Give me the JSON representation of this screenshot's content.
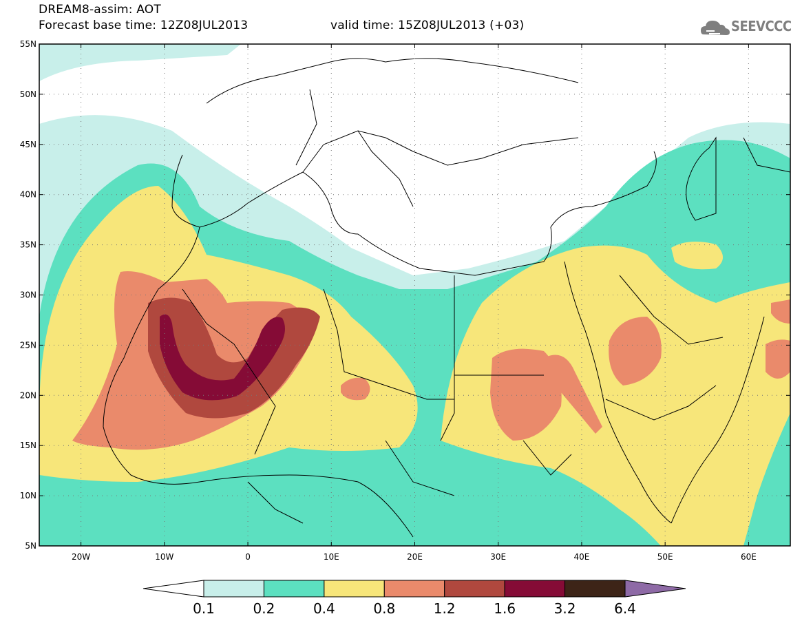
{
  "header": {
    "line1": "DREAM8-assim: AOT",
    "line2": "Forecast base time: 12Z08JUL2013",
    "line3": "valid time: 15Z08JUL2013 (+03)",
    "logo_text": "SEEVCCC"
  },
  "axes": {
    "lat_labels": [
      "55N",
      "50N",
      "45N",
      "40N",
      "35N",
      "30N",
      "25N",
      "20N",
      "15N",
      "10N",
      "5N"
    ],
    "lon_labels": [
      "20W",
      "10W",
      "0",
      "10E",
      "20E",
      "30E",
      "40E",
      "50E",
      "60E"
    ],
    "lat_range": [
      5,
      55
    ],
    "lon_range": [
      -25,
      65
    ],
    "grid": "dotted"
  },
  "colorbar": {
    "levels": [
      "0.1",
      "0.2",
      "0.4",
      "0.8",
      "1.2",
      "1.6",
      "3.2",
      "6.4"
    ],
    "colors": [
      "#ffffff",
      "#c8efea",
      "#5ce0c0",
      "#f7e67a",
      "#ea8a6b",
      "#b0483e",
      "#850b36",
      "#3d2417",
      "#8e6aa6"
    ]
  },
  "colors": {
    "land": "#ffffff",
    "c1": "#c8efea",
    "c2": "#5ce0c0",
    "c3": "#f7e67a",
    "c4": "#ea8a6b",
    "c5": "#b0483e",
    "c6": "#850b36",
    "logo": "#7f7f7f"
  }
}
